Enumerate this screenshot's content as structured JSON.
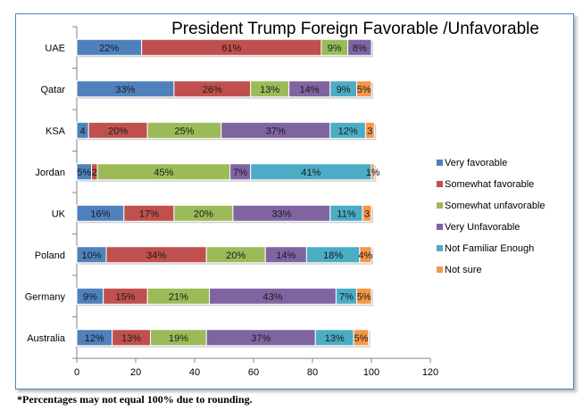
{
  "chart_data": {
    "type": "bar",
    "orientation": "horizontal",
    "stacked": true,
    "title": "President Trump Foreign Favorable /Unfavorable",
    "xlabel": "",
    "ylabel": "",
    "xlim": [
      0,
      120
    ],
    "xticks": [
      0,
      20,
      40,
      60,
      80,
      100,
      120
    ],
    "grid": false,
    "legend_position": "right",
    "categories": [
      "UAE",
      "Qatar",
      "KSA",
      "Jordan",
      "UK",
      "Poland",
      "Germany",
      "Australia"
    ],
    "series": [
      {
        "name": "Very favorable",
        "color": "#4F81BD",
        "values": [
          22,
          33,
          4,
          5,
          16,
          10,
          9,
          12
        ],
        "labels": [
          "22%",
          "33%",
          "4",
          "5%",
          "16%",
          "10%",
          "9%",
          "12%"
        ]
      },
      {
        "name": "Somewhat favorable",
        "color": "#C0504D",
        "values": [
          61,
          26,
          20,
          2,
          17,
          34,
          15,
          13
        ],
        "labels": [
          "61%",
          "26%",
          "20%",
          "2",
          "17%",
          "34%",
          "15%",
          "13%"
        ]
      },
      {
        "name": "Somewhat unfavorable",
        "color": "#9BBB59",
        "values": [
          9,
          13,
          25,
          45,
          20,
          20,
          21,
          19
        ],
        "labels": [
          "9%",
          "13%",
          "25%",
          "45%",
          "20%",
          "20%",
          "21%",
          "19%"
        ]
      },
      {
        "name": "Very Unfavorable",
        "color": "#8064A2",
        "values": [
          8,
          14,
          37,
          7,
          33,
          14,
          43,
          37
        ],
        "labels": [
          "8%",
          "14%",
          "37%",
          "7%",
          "33%",
          "14%",
          "43%",
          "37%"
        ]
      },
      {
        "name": "Not Familiar  Enough",
        "color": "#4BACC6",
        "values": [
          0,
          9,
          12,
          41,
          11,
          18,
          7,
          13
        ],
        "labels": [
          "",
          "9%",
          "12%",
          "41%",
          "11%",
          "18%",
          "7%",
          "13%"
        ]
      },
      {
        "name": "Not sure",
        "color": "#F79646",
        "values": [
          0,
          5,
          3,
          1,
          3,
          4,
          5,
          5
        ],
        "labels": [
          "",
          "5%",
          "3",
          "1%",
          "3",
          "4%",
          "5%",
          "5%"
        ]
      }
    ]
  },
  "footnote": "*Percentages may not equal 100% due to rounding."
}
